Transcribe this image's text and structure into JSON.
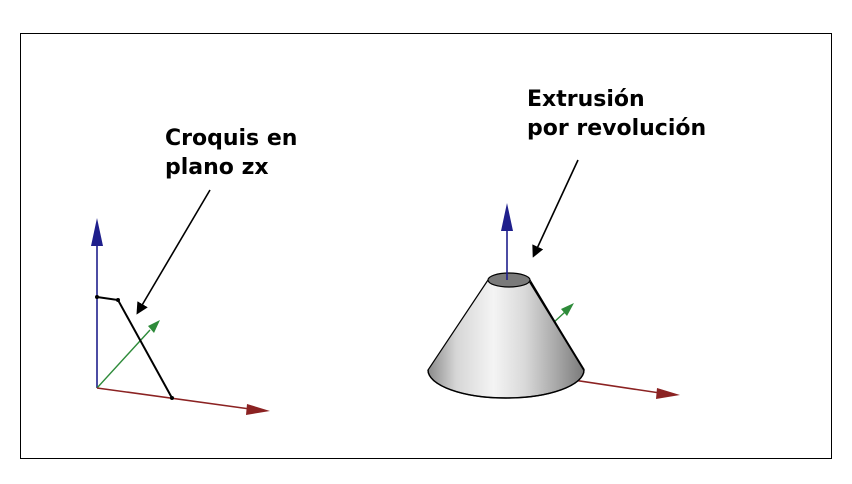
{
  "left_label": {
    "line1": "Croquis en",
    "line2": "plano zx"
  },
  "right_label": {
    "line1": "Extrusión",
    "line2": "por revolución"
  },
  "colors": {
    "z_axis": "#1f1f8c",
    "y_axis": "#2e8b3a",
    "x_axis": "#8b2222",
    "sketch": "#000000",
    "cone_light": "#f2f2f2",
    "cone_dark": "#6e6e6e"
  }
}
